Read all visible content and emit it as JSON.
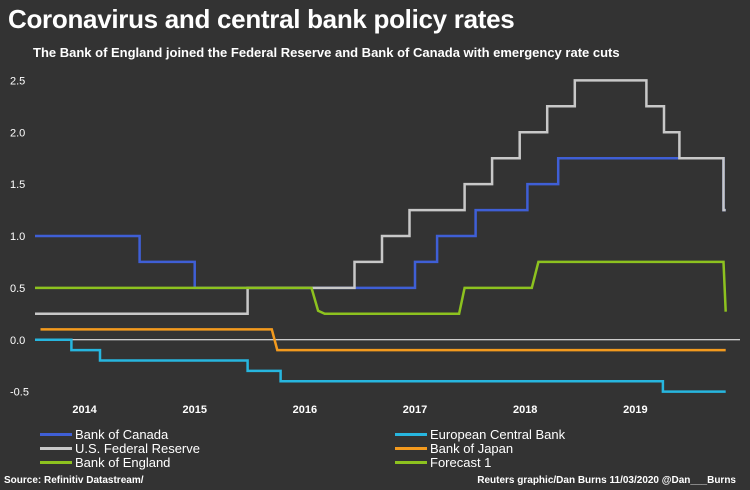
{
  "title": "Coronavirus and central bank policy rates",
  "subtitle": "The Bank of England joined the Federal Reserve and Bank of Canada with emergency rate cuts",
  "source": "Source: Refinitiv Datastream/",
  "credit": "Reuters graphic/Dan Burns 11/03/2020 @Dan___Burns",
  "chart_data": {
    "type": "line",
    "x_range": [
      2013.55,
      2019.95
    ],
    "ylim": [
      -0.6,
      2.6
    ],
    "yticks": [
      "2.5",
      "2.0",
      "1.5",
      "1.0",
      "0.5",
      "0.0",
      "-0.5"
    ],
    "ytick_values": [
      2.5,
      2.0,
      1.5,
      1.0,
      0.5,
      0.0,
      -0.5
    ],
    "xticks": [
      "2014",
      "2015",
      "2016",
      "2017",
      "2018",
      "2019"
    ],
    "xtick_values": [
      2014.0,
      2015.0,
      2016.0,
      2017.0,
      2018.0,
      2019.0
    ],
    "grid": false,
    "legend_position": "bottom",
    "series": [
      {
        "name": "Bank of Canada",
        "color": "#3f5fd6",
        "points": [
          [
            2013.55,
            1.0
          ],
          [
            2014.5,
            1.0
          ],
          [
            2014.5,
            0.75
          ],
          [
            2015.0,
            0.75
          ],
          [
            2015.0,
            0.5
          ],
          [
            2017.0,
            0.5
          ],
          [
            2017.0,
            0.75
          ],
          [
            2017.2,
            0.75
          ],
          [
            2017.2,
            1.0
          ],
          [
            2017.55,
            1.0
          ],
          [
            2017.55,
            1.25
          ],
          [
            2018.02,
            1.25
          ],
          [
            2018.02,
            1.5
          ],
          [
            2018.3,
            1.5
          ],
          [
            2018.3,
            1.75
          ],
          [
            2019.8,
            1.75
          ],
          [
            2019.8,
            1.25
          ],
          [
            2019.82,
            1.25
          ]
        ]
      },
      {
        "name": "U.S. Federal Reserve",
        "color": "#c8c8c8",
        "points": [
          [
            2013.55,
            0.25
          ],
          [
            2015.48,
            0.25
          ],
          [
            2015.48,
            0.5
          ],
          [
            2016.45,
            0.5
          ],
          [
            2016.45,
            0.75
          ],
          [
            2016.7,
            0.75
          ],
          [
            2016.7,
            1.0
          ],
          [
            2016.95,
            1.0
          ],
          [
            2016.95,
            1.25
          ],
          [
            2017.45,
            1.25
          ],
          [
            2017.45,
            1.5
          ],
          [
            2017.7,
            1.5
          ],
          [
            2017.7,
            1.75
          ],
          [
            2017.95,
            1.75
          ],
          [
            2017.95,
            2.0
          ],
          [
            2018.2,
            2.0
          ],
          [
            2018.2,
            2.25
          ],
          [
            2018.45,
            2.25
          ],
          [
            2018.45,
            2.5
          ],
          [
            2019.1,
            2.5
          ],
          [
            2019.1,
            2.25
          ],
          [
            2019.26,
            2.25
          ],
          [
            2019.26,
            2.0
          ],
          [
            2019.4,
            2.0
          ],
          [
            2019.4,
            1.75
          ],
          [
            2019.8,
            1.75
          ],
          [
            2019.8,
            1.25
          ],
          [
            2019.82,
            1.25
          ]
        ]
      },
      {
        "name": "Bank of England",
        "color": "#8dc21f",
        "points": [
          [
            2013.55,
            0.5
          ],
          [
            2016.06,
            0.5
          ],
          [
            2016.12,
            0.28
          ],
          [
            2016.18,
            0.25
          ],
          [
            2017.4,
            0.25
          ],
          [
            2017.45,
            0.5
          ],
          [
            2018.06,
            0.5
          ],
          [
            2018.12,
            0.75
          ],
          [
            2019.8,
            0.75
          ],
          [
            2019.82,
            0.27
          ]
        ]
      },
      {
        "name": "European Central Bank",
        "color": "#27b6df",
        "points": [
          [
            2013.55,
            0.0
          ],
          [
            2013.88,
            0.0
          ],
          [
            2013.88,
            -0.1
          ],
          [
            2014.14,
            -0.1
          ],
          [
            2014.14,
            -0.2
          ],
          [
            2015.48,
            -0.2
          ],
          [
            2015.48,
            -0.3
          ],
          [
            2015.78,
            -0.3
          ],
          [
            2015.78,
            -0.4
          ],
          [
            2019.25,
            -0.4
          ],
          [
            2019.25,
            -0.5
          ],
          [
            2019.82,
            -0.5
          ]
        ]
      },
      {
        "name": "Bank of Japan",
        "color": "#f39a1e",
        "points": [
          [
            2013.6,
            0.1
          ],
          [
            2015.7,
            0.1
          ],
          [
            2015.75,
            -0.1
          ],
          [
            2019.82,
            -0.1
          ]
        ]
      },
      {
        "name": "Forecast 1",
        "color": "#8dc21f",
        "points": []
      }
    ]
  },
  "legend": [
    {
      "label": "Bank of Canada",
      "color": "#3f5fd6"
    },
    {
      "label": "European Central Bank",
      "color": "#27b6df"
    },
    {
      "label": "U.S. Federal Reserve",
      "color": "#c8c8c8"
    },
    {
      "label": "Bank of Japan",
      "color": "#f39a1e"
    },
    {
      "label": "Bank of England",
      "color": "#8dc21f"
    },
    {
      "label": "Forecast 1",
      "color": "#8dc21f"
    }
  ]
}
